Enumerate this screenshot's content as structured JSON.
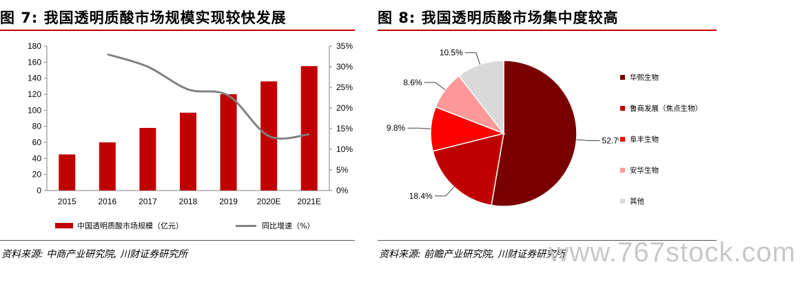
{
  "figures": [
    {
      "title": "图 7: 我国透明质酸市场规模实现较快发展",
      "source": "资料来源: 中商产业研究院, 川财证券研究所"
    },
    {
      "title": "图 8: 我国透明质酸市场集中度较高",
      "source": "资料来源: 前瞻产业研究院, 川财证券研究所"
    }
  ],
  "chart_data": [
    {
      "type": "bar",
      "categories": [
        "2015",
        "2016",
        "2017",
        "2018",
        "2019",
        "2020E",
        "2021E"
      ],
      "series": [
        {
          "name": "中国透明质酸市场规模（亿元）",
          "type": "bar",
          "axis": "left",
          "values": [
            45,
            60,
            78,
            97,
            120,
            136,
            155
          ],
          "color": "#c00000"
        },
        {
          "name": "同比增速（%）",
          "type": "line",
          "axis": "right",
          "values": [
            null,
            33,
            30,
            24.5,
            23,
            13.2,
            13.6
          ],
          "color": "#808080"
        }
      ],
      "ylim": [
        0,
        180
      ],
      "yticks": [
        "0",
        "20",
        "40",
        "60",
        "80",
        "100",
        "120",
        "140",
        "160",
        "180"
      ],
      "y2lim": [
        0,
        35
      ],
      "y2ticks": [
        "0%",
        "5%",
        "10%",
        "15%",
        "20%",
        "25%",
        "30%",
        "35%"
      ],
      "grid": false,
      "legend": "bottom"
    },
    {
      "type": "pie",
      "slices": [
        {
          "label": "华熙生物",
          "value": 52.7,
          "display": "52.7%",
          "color": "#7a0000"
        },
        {
          "label": "鲁商发展（焦点生物）",
          "value": 18.4,
          "display": "18.4%",
          "color": "#c00000"
        },
        {
          "label": "阜丰生物",
          "value": 9.8,
          "display": "9.8%",
          "color": "#ff0000"
        },
        {
          "label": "安华生物",
          "value": 8.6,
          "display": "8.6%",
          "color": "#ff9999"
        },
        {
          "label": "其他",
          "value": 10.5,
          "display": "10.5%",
          "color": "#d9d9d9"
        }
      ],
      "legend": "right"
    }
  ],
  "watermark": "www.767stock.com"
}
